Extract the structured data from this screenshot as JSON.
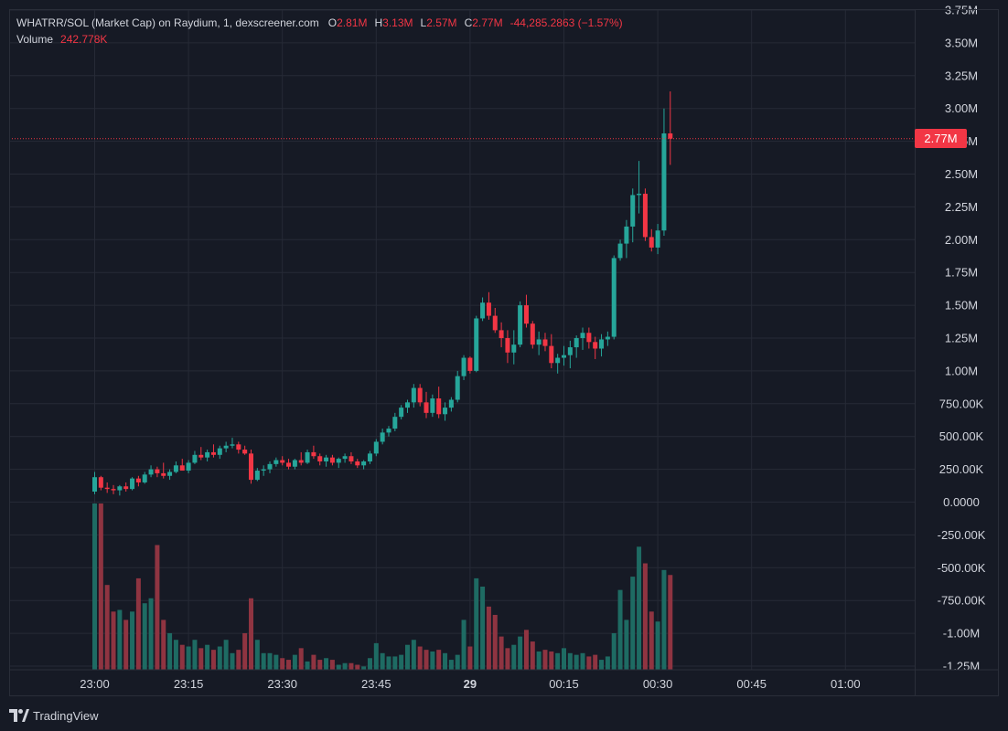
{
  "legend": {
    "title": "WHATRR/SOL (Market Cap) on Raydium, 1, dexscreener.com",
    "open_label": "O",
    "open": "2.81M",
    "high_label": "H",
    "high": "3.13M",
    "low_label": "L",
    "low": "2.57M",
    "close_label": "C",
    "close": "2.77M",
    "change": "-44,285.2863 (−1.57%)",
    "volume_label": "Volume",
    "volume": "242.778K"
  },
  "last_price_tag": "2.77M",
  "footer": {
    "brand": "TradingView",
    "logo_icon": "tradingview-logo-icon"
  },
  "colors": {
    "up": "#26a69a",
    "down": "#f23645",
    "vol_up": "#1e6b63",
    "vol_down": "#8f3441",
    "background": "#161a25",
    "grid": "#262a36"
  },
  "chart_data": {
    "type": "candlestick",
    "series_name": "WHATRR/SOL (Market Cap)",
    "interval_minutes": 1,
    "x_start": "23:00",
    "y_ticks": [
      "3.75M",
      "3.50M",
      "3.25M",
      "3.00M",
      "2.75M",
      "2.50M",
      "2.25M",
      "2.00M",
      "1.75M",
      "1.50M",
      "1.25M",
      "1.00M",
      "750.00K",
      "500.00K",
      "250.00K",
      "0.0000",
      "-250.00K",
      "-500.00K",
      "-750.00K",
      "-1.00M",
      "-1.25M"
    ],
    "y_tick_values": [
      3750000,
      3500000,
      3250000,
      3000000,
      2750000,
      2500000,
      2250000,
      2000000,
      1750000,
      1500000,
      1250000,
      1000000,
      750000,
      500000,
      250000,
      0,
      -250000,
      -500000,
      -750000,
      -1000000,
      -1250000
    ],
    "x_ticks": [
      {
        "label": "23:00",
        "minute": 0
      },
      {
        "label": "23:15",
        "minute": 15
      },
      {
        "label": "23:30",
        "minute": 30
      },
      {
        "label": "23:45",
        "minute": 45
      },
      {
        "label": "29",
        "minute": 60,
        "bold": true
      },
      {
        "label": "00:15",
        "minute": 75
      },
      {
        "label": "00:30",
        "minute": 90
      },
      {
        "label": "00:45",
        "minute": 105
      },
      {
        "label": "01:00",
        "minute": 120
      }
    ],
    "last_price": 2770000,
    "candles": [
      {
        "o": 80000,
        "h": 230000,
        "l": 60000,
        "c": 190000,
        "v": 1
      },
      {
        "o": 190000,
        "h": 200000,
        "l": 90000,
        "c": 110000,
        "v": 1
      },
      {
        "o": 110000,
        "h": 150000,
        "l": 70000,
        "c": 100000,
        "v": 0.51
      },
      {
        "o": 100000,
        "h": 130000,
        "l": 60000,
        "c": 90000,
        "v": 0.35
      },
      {
        "o": 90000,
        "h": 130000,
        "l": 50000,
        "c": 120000,
        "v": 0.36
      },
      {
        "o": 120000,
        "h": 150000,
        "l": 80000,
        "c": 100000,
        "v": 0.3
      },
      {
        "o": 100000,
        "h": 190000,
        "l": 90000,
        "c": 180000,
        "v": 0.35
      },
      {
        "o": 180000,
        "h": 200000,
        "l": 120000,
        "c": 150000,
        "v": 0.55
      },
      {
        "o": 150000,
        "h": 230000,
        "l": 140000,
        "c": 210000,
        "v": 0.4
      },
      {
        "o": 210000,
        "h": 280000,
        "l": 190000,
        "c": 250000,
        "v": 0.43
      },
      {
        "o": 250000,
        "h": 270000,
        "l": 190000,
        "c": 220000,
        "v": 0.75
      },
      {
        "o": 220000,
        "h": 300000,
        "l": 180000,
        "c": 200000,
        "v": 0.3
      },
      {
        "o": 200000,
        "h": 250000,
        "l": 170000,
        "c": 230000,
        "v": 0.22
      },
      {
        "o": 230000,
        "h": 310000,
        "l": 220000,
        "c": 280000,
        "v": 0.18
      },
      {
        "o": 280000,
        "h": 330000,
        "l": 250000,
        "c": 240000,
        "v": 0.15
      },
      {
        "o": 240000,
        "h": 320000,
        "l": 220000,
        "c": 300000,
        "v": 0.14
      },
      {
        "o": 300000,
        "h": 390000,
        "l": 290000,
        "c": 360000,
        "v": 0.18
      },
      {
        "o": 360000,
        "h": 420000,
        "l": 320000,
        "c": 340000,
        "v": 0.13
      },
      {
        "o": 340000,
        "h": 400000,
        "l": 310000,
        "c": 380000,
        "v": 0.15
      },
      {
        "o": 380000,
        "h": 440000,
        "l": 340000,
        "c": 360000,
        "v": 0.12
      },
      {
        "o": 360000,
        "h": 430000,
        "l": 330000,
        "c": 410000,
        "v": 0.14
      },
      {
        "o": 410000,
        "h": 460000,
        "l": 380000,
        "c": 430000,
        "v": 0.18
      },
      {
        "o": 430000,
        "h": 490000,
        "l": 410000,
        "c": 440000,
        "v": 0.1
      },
      {
        "o": 440000,
        "h": 460000,
        "l": 370000,
        "c": 400000,
        "v": 0.12
      },
      {
        "o": 400000,
        "h": 430000,
        "l": 360000,
        "c": 370000,
        "v": 0.22
      },
      {
        "o": 370000,
        "h": 400000,
        "l": 140000,
        "c": 170000,
        "v": 0.43
      },
      {
        "o": 170000,
        "h": 260000,
        "l": 160000,
        "c": 240000,
        "v": 0.18
      },
      {
        "o": 240000,
        "h": 280000,
        "l": 200000,
        "c": 250000,
        "v": 0.1
      },
      {
        "o": 250000,
        "h": 310000,
        "l": 220000,
        "c": 290000,
        "v": 0.1
      },
      {
        "o": 290000,
        "h": 340000,
        "l": 270000,
        "c": 320000,
        "v": 0.09
      },
      {
        "o": 320000,
        "h": 350000,
        "l": 280000,
        "c": 300000,
        "v": 0.07
      },
      {
        "o": 300000,
        "h": 330000,
        "l": 250000,
        "c": 270000,
        "v": 0.06
      },
      {
        "o": 270000,
        "h": 330000,
        "l": 250000,
        "c": 320000,
        "v": 0.09
      },
      {
        "o": 320000,
        "h": 380000,
        "l": 280000,
        "c": 300000,
        "v": 0.13
      },
      {
        "o": 300000,
        "h": 400000,
        "l": 290000,
        "c": 380000,
        "v": 0.05
      },
      {
        "o": 380000,
        "h": 430000,
        "l": 330000,
        "c": 350000,
        "v": 0.09
      },
      {
        "o": 350000,
        "h": 370000,
        "l": 280000,
        "c": 310000,
        "v": 0.06
      },
      {
        "o": 310000,
        "h": 360000,
        "l": 270000,
        "c": 340000,
        "v": 0.07
      },
      {
        "o": 340000,
        "h": 360000,
        "l": 280000,
        "c": 300000,
        "v": 0.06
      },
      {
        "o": 300000,
        "h": 340000,
        "l": 260000,
        "c": 330000,
        "v": 0.03
      },
      {
        "o": 330000,
        "h": 370000,
        "l": 300000,
        "c": 350000,
        "v": 0.04
      },
      {
        "o": 350000,
        "h": 380000,
        "l": 290000,
        "c": 310000,
        "v": 0.04
      },
      {
        "o": 310000,
        "h": 330000,
        "l": 260000,
        "c": 280000,
        "v": 0.03
      },
      {
        "o": 280000,
        "h": 320000,
        "l": 250000,
        "c": 310000,
        "v": 0.02
      },
      {
        "o": 310000,
        "h": 390000,
        "l": 290000,
        "c": 370000,
        "v": 0.07
      },
      {
        "o": 370000,
        "h": 480000,
        "l": 350000,
        "c": 460000,
        "v": 0.16
      },
      {
        "o": 460000,
        "h": 560000,
        "l": 440000,
        "c": 530000,
        "v": 0.1
      },
      {
        "o": 530000,
        "h": 580000,
        "l": 500000,
        "c": 560000,
        "v": 0.08
      },
      {
        "o": 560000,
        "h": 680000,
        "l": 540000,
        "c": 650000,
        "v": 0.08
      },
      {
        "o": 650000,
        "h": 740000,
        "l": 630000,
        "c": 720000,
        "v": 0.09
      },
      {
        "o": 720000,
        "h": 780000,
        "l": 680000,
        "c": 760000,
        "v": 0.15
      },
      {
        "o": 760000,
        "h": 900000,
        "l": 720000,
        "c": 870000,
        "v": 0.18
      },
      {
        "o": 870000,
        "h": 900000,
        "l": 730000,
        "c": 760000,
        "v": 0.14
      },
      {
        "o": 760000,
        "h": 840000,
        "l": 640000,
        "c": 680000,
        "v": 0.12
      },
      {
        "o": 680000,
        "h": 820000,
        "l": 650000,
        "c": 790000,
        "v": 0.11
      },
      {
        "o": 790000,
        "h": 880000,
        "l": 640000,
        "c": 670000,
        "v": 0.12
      },
      {
        "o": 670000,
        "h": 760000,
        "l": 620000,
        "c": 720000,
        "v": 0.1
      },
      {
        "o": 720000,
        "h": 800000,
        "l": 690000,
        "c": 780000,
        "v": 0.06
      },
      {
        "o": 780000,
        "h": 1000000,
        "l": 760000,
        "c": 960000,
        "v": 0.09
      },
      {
        "o": 960000,
        "h": 1120000,
        "l": 930000,
        "c": 1100000,
        "v": 0.3
      },
      {
        "o": 1100000,
        "h": 1110000,
        "l": 980000,
        "c": 1000000,
        "v": 0.14
      },
      {
        "o": 1000000,
        "h": 1420000,
        "l": 990000,
        "c": 1400000,
        "v": 0.55
      },
      {
        "o": 1400000,
        "h": 1560000,
        "l": 1380000,
        "c": 1520000,
        "v": 0.5
      },
      {
        "o": 1520000,
        "h": 1600000,
        "l": 1390000,
        "c": 1420000,
        "v": 0.38
      },
      {
        "o": 1420000,
        "h": 1480000,
        "l": 1290000,
        "c": 1310000,
        "v": 0.33
      },
      {
        "o": 1310000,
        "h": 1370000,
        "l": 1180000,
        "c": 1250000,
        "v": 0.2
      },
      {
        "o": 1250000,
        "h": 1310000,
        "l": 1060000,
        "c": 1140000,
        "v": 0.13
      },
      {
        "o": 1140000,
        "h": 1310000,
        "l": 1050000,
        "c": 1200000,
        "v": 0.15
      },
      {
        "o": 1200000,
        "h": 1530000,
        "l": 1180000,
        "c": 1500000,
        "v": 0.2
      },
      {
        "o": 1500000,
        "h": 1580000,
        "l": 1330000,
        "c": 1360000,
        "v": 0.24
      },
      {
        "o": 1360000,
        "h": 1380000,
        "l": 1170000,
        "c": 1200000,
        "v": 0.17
      },
      {
        "o": 1200000,
        "h": 1300000,
        "l": 1120000,
        "c": 1240000,
        "v": 0.11
      },
      {
        "o": 1240000,
        "h": 1290000,
        "l": 1150000,
        "c": 1190000,
        "v": 0.12
      },
      {
        "o": 1190000,
        "h": 1280000,
        "l": 1020000,
        "c": 1060000,
        "v": 0.11
      },
      {
        "o": 1060000,
        "h": 1130000,
        "l": 980000,
        "c": 1100000,
        "v": 0.1
      },
      {
        "o": 1100000,
        "h": 1190000,
        "l": 1040000,
        "c": 1120000,
        "v": 0.13
      },
      {
        "o": 1120000,
        "h": 1230000,
        "l": 1020000,
        "c": 1180000,
        "v": 0.1
      },
      {
        "o": 1180000,
        "h": 1270000,
        "l": 1100000,
        "c": 1250000,
        "v": 0.09
      },
      {
        "o": 1250000,
        "h": 1330000,
        "l": 1160000,
        "c": 1290000,
        "v": 0.1
      },
      {
        "o": 1290000,
        "h": 1330000,
        "l": 1170000,
        "c": 1220000,
        "v": 0.08
      },
      {
        "o": 1220000,
        "h": 1260000,
        "l": 1090000,
        "c": 1170000,
        "v": 0.09
      },
      {
        "o": 1170000,
        "h": 1280000,
        "l": 1110000,
        "c": 1240000,
        "v": 0.06
      },
      {
        "o": 1240000,
        "h": 1300000,
        "l": 1190000,
        "c": 1260000,
        "v": 0.08
      },
      {
        "o": 1260000,
        "h": 1880000,
        "l": 1240000,
        "c": 1860000,
        "v": 0.22
      },
      {
        "o": 1860000,
        "h": 2000000,
        "l": 1840000,
        "c": 1970000,
        "v": 0.48
      },
      {
        "o": 1970000,
        "h": 2150000,
        "l": 1860000,
        "c": 2100000,
        "v": 0.3
      },
      {
        "o": 2100000,
        "h": 2390000,
        "l": 1980000,
        "c": 2340000,
        "v": 0.56
      },
      {
        "o": 2340000,
        "h": 2600000,
        "l": 2200000,
        "c": 2350000,
        "v": 0.74
      },
      {
        "o": 2350000,
        "h": 2390000,
        "l": 1990000,
        "c": 2020000,
        "v": 0.64
      },
      {
        "o": 2020000,
        "h": 2080000,
        "l": 1910000,
        "c": 1940000,
        "v": 0.35
      },
      {
        "o": 1940000,
        "h": 2120000,
        "l": 1890000,
        "c": 2070000,
        "v": 0.29
      },
      {
        "o": 2070000,
        "h": 3000000,
        "l": 2030000,
        "c": 2810000,
        "v": 0.6
      },
      {
        "o": 2810000,
        "h": 3130000,
        "l": 2570000,
        "c": 2770000,
        "v": 0.57
      }
    ],
    "volume_note": "volume values are relative heights (0-1 of max bar)"
  }
}
